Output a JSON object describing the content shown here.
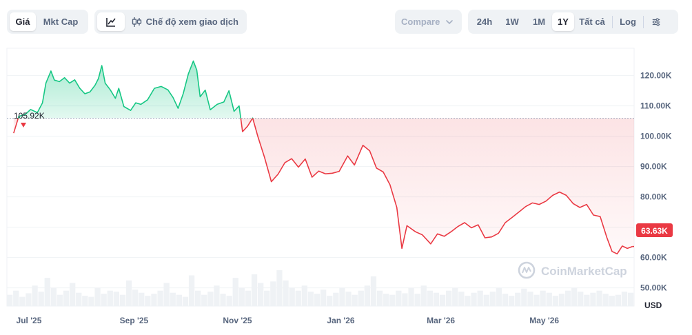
{
  "toolbar": {
    "metric_tabs": [
      {
        "label": "Giá",
        "active": true
      },
      {
        "label": "Mkt Cap",
        "active": false
      }
    ],
    "mode_label": "Chế độ xem giao dịch",
    "mode_icons": [
      "line-chart-icon",
      "candlestick-icon"
    ],
    "compare_label": "Compare",
    "ranges": [
      {
        "label": "24h",
        "active": false
      },
      {
        "label": "1W",
        "active": false
      },
      {
        "label": "1M",
        "active": false
      },
      {
        "label": "1Y",
        "active": true
      },
      {
        "label": "Tất cả",
        "active": false
      }
    ],
    "log_label": "Log",
    "settings_icon": "sliders-icon"
  },
  "watermark": "CoinMarketCap",
  "colors": {
    "up": "#16c784",
    "down": "#ea3943",
    "up_fill": "#16c784",
    "down_fill": "#ea3943",
    "grid": "#eff2f5",
    "baseline": "#a6b0c3",
    "volume": "#eff2f5"
  },
  "chart_data": {
    "type": "area",
    "currency_label": "USD",
    "baseline_label": "105.92K",
    "baseline_value": 105.92,
    "current_label": "63.63K",
    "current_value": 63.63,
    "y_tick_labels": [
      "50.00K",
      "60.00K",
      "70.00K",
      "80.00K",
      "90.00K",
      "100.00K",
      "110.00K",
      "120.00K"
    ],
    "y_ticks": [
      50,
      60,
      70,
      80,
      90,
      100,
      110,
      120
    ],
    "ylim": [
      44,
      129
    ],
    "x_tick_labels": [
      "Jul '25",
      "Sep '25",
      "Nov '25",
      "Jan '26",
      "Mar '26",
      "May '26"
    ],
    "x_ticks": [
      "2025-07-01",
      "2025-09-01",
      "2025-11-01",
      "2026-01-01",
      "2026-03-01",
      "2026-05-01"
    ],
    "xlim": [
      "2025-06-18",
      "2026-06-23"
    ],
    "series": [
      {
        "unit": "K USD",
        "points": [
          [
            "2025-06-22",
            101.0
          ],
          [
            "2025-06-25",
            106.5
          ],
          [
            "2025-06-29",
            107.3
          ],
          [
            "2025-07-02",
            108.8
          ],
          [
            "2025-07-06",
            107.8
          ],
          [
            "2025-07-09",
            111.0
          ],
          [
            "2025-07-11",
            117.5
          ],
          [
            "2025-07-14",
            121.5
          ],
          [
            "2025-07-16",
            118.5
          ],
          [
            "2025-07-19",
            118.0
          ],
          [
            "2025-07-22",
            119.3
          ],
          [
            "2025-07-25",
            117.5
          ],
          [
            "2025-07-28",
            118.6
          ],
          [
            "2025-07-31",
            115.8
          ],
          [
            "2025-08-03",
            114.0
          ],
          [
            "2025-08-06",
            114.6
          ],
          [
            "2025-08-09",
            116.8
          ],
          [
            "2025-08-11",
            119.0
          ],
          [
            "2025-08-13",
            123.3
          ],
          [
            "2025-08-15",
            117.5
          ],
          [
            "2025-08-18",
            115.3
          ],
          [
            "2025-08-21",
            112.5
          ],
          [
            "2025-08-23",
            115.8
          ],
          [
            "2025-08-26",
            109.8
          ],
          [
            "2025-08-30",
            108.5
          ],
          [
            "2025-09-02",
            111.0
          ],
          [
            "2025-09-05",
            110.5
          ],
          [
            "2025-09-09",
            112.0
          ],
          [
            "2025-09-13",
            115.8
          ],
          [
            "2025-09-17",
            116.4
          ],
          [
            "2025-09-21",
            115.3
          ],
          [
            "2025-09-24",
            112.8
          ],
          [
            "2025-09-27",
            109.2
          ],
          [
            "2025-09-30",
            114.0
          ],
          [
            "2025-10-03",
            120.5
          ],
          [
            "2025-10-06",
            124.8
          ],
          [
            "2025-10-08",
            121.8
          ],
          [
            "2025-10-10",
            113.0
          ],
          [
            "2025-10-13",
            115.2
          ],
          [
            "2025-10-16",
            108.7
          ],
          [
            "2025-10-20",
            110.5
          ],
          [
            "2025-10-24",
            111.3
          ],
          [
            "2025-10-27",
            115.0
          ],
          [
            "2025-10-30",
            108.2
          ],
          [
            "2025-11-02",
            110.0
          ],
          [
            "2025-11-04",
            101.5
          ],
          [
            "2025-11-07",
            103.3
          ],
          [
            "2025-11-10",
            106.0
          ],
          [
            "2025-11-13",
            100.0
          ],
          [
            "2025-11-17",
            93.0
          ],
          [
            "2025-11-21",
            85.0
          ],
          [
            "2025-11-25",
            87.5
          ],
          [
            "2025-11-29",
            91.3
          ],
          [
            "2025-12-03",
            92.6
          ],
          [
            "2025-12-07",
            89.8
          ],
          [
            "2025-12-11",
            92.5
          ],
          [
            "2025-12-15",
            86.5
          ],
          [
            "2025-12-19",
            88.5
          ],
          [
            "2025-12-23",
            87.6
          ],
          [
            "2025-12-27",
            87.8
          ],
          [
            "2025-12-31",
            88.4
          ],
          [
            "2026-01-05",
            93.5
          ],
          [
            "2026-01-09",
            90.5
          ],
          [
            "2026-01-14",
            97.0
          ],
          [
            "2026-01-18",
            95.2
          ],
          [
            "2026-01-22",
            89.5
          ],
          [
            "2026-01-26",
            88.2
          ],
          [
            "2026-01-30",
            84.0
          ],
          [
            "2026-02-03",
            76.5
          ],
          [
            "2026-02-06",
            63.0
          ],
          [
            "2026-02-09",
            70.5
          ],
          [
            "2026-02-14",
            68.5
          ],
          [
            "2026-02-18",
            67.5
          ],
          [
            "2026-02-23",
            64.5
          ],
          [
            "2026-02-27",
            67.8
          ],
          [
            "2026-03-03",
            67.0
          ],
          [
            "2026-03-07",
            68.5
          ],
          [
            "2026-03-11",
            70.2
          ],
          [
            "2026-03-15",
            71.5
          ],
          [
            "2026-03-19",
            69.8
          ],
          [
            "2026-03-23",
            70.8
          ],
          [
            "2026-03-27",
            66.5
          ],
          [
            "2026-03-31",
            66.8
          ],
          [
            "2026-04-04",
            68.0
          ],
          [
            "2026-04-08",
            71.5
          ],
          [
            "2026-04-12",
            73.2
          ],
          [
            "2026-04-16",
            75.0
          ],
          [
            "2026-04-20",
            76.8
          ],
          [
            "2026-04-24",
            78.0
          ],
          [
            "2026-04-28",
            77.5
          ],
          [
            "2026-05-02",
            78.6
          ],
          [
            "2026-05-06",
            80.5
          ],
          [
            "2026-05-10",
            81.6
          ],
          [
            "2026-05-14",
            80.5
          ],
          [
            "2026-05-18",
            77.8
          ],
          [
            "2026-05-22",
            76.5
          ],
          [
            "2026-05-26",
            77.5
          ],
          [
            "2026-05-30",
            74.0
          ],
          [
            "2026-06-03",
            73.5
          ],
          [
            "2026-06-07",
            66.5
          ],
          [
            "2026-06-10",
            62.0
          ],
          [
            "2026-06-13",
            61.2
          ],
          [
            "2026-06-16",
            63.8
          ],
          [
            "2026-06-19",
            63.0
          ],
          [
            "2026-06-22",
            63.63
          ]
        ]
      }
    ],
    "volume": {
      "relative": true,
      "values": [
        22,
        30,
        18,
        25,
        40,
        28,
        55,
        35,
        22,
        30,
        45,
        26,
        20,
        18,
        35,
        24,
        30,
        28,
        22,
        50,
        32,
        26,
        20,
        24,
        30,
        45,
        26,
        22,
        18,
        60,
        30,
        22,
        28,
        40,
        24,
        20,
        55,
        35,
        30,
        62,
        45,
        30,
        48,
        70,
        50,
        36,
        30,
        40,
        28,
        24,
        32,
        20,
        26,
        36,
        28,
        22,
        30,
        40,
        58,
        30,
        24,
        22,
        30,
        25,
        35,
        24,
        40,
        30,
        26,
        22,
        30,
        35,
        28,
        20,
        26,
        30,
        22,
        28,
        36,
        24,
        20,
        26,
        34,
        28,
        22,
        30,
        26,
        20,
        24,
        30,
        36,
        28,
        22,
        26,
        30,
        24,
        20,
        22,
        28,
        26
      ]
    }
  }
}
